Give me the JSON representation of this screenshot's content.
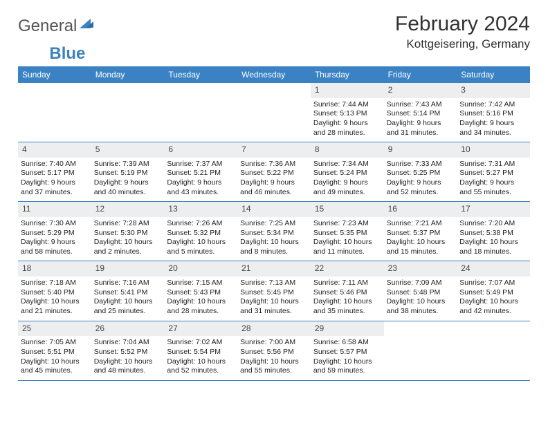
{
  "brand": {
    "part1": "General",
    "part2": "Blue"
  },
  "title": "February 2024",
  "location": "Kottgeisering, Germany",
  "colors": {
    "header_bg": "#3b82c4",
    "header_text": "#ffffff",
    "daynum_bg": "#eceef0",
    "text": "#222222",
    "rule": "#3b82c4"
  },
  "dayNames": [
    "Sunday",
    "Monday",
    "Tuesday",
    "Wednesday",
    "Thursday",
    "Friday",
    "Saturday"
  ],
  "weeks": [
    [
      {
        "empty": true
      },
      {
        "empty": true
      },
      {
        "empty": true
      },
      {
        "empty": true
      },
      {
        "n": "1",
        "sr": "Sunrise: 7:44 AM",
        "ss": "Sunset: 5:13 PM",
        "d1": "Daylight: 9 hours",
        "d2": "and 28 minutes."
      },
      {
        "n": "2",
        "sr": "Sunrise: 7:43 AM",
        "ss": "Sunset: 5:14 PM",
        "d1": "Daylight: 9 hours",
        "d2": "and 31 minutes."
      },
      {
        "n": "3",
        "sr": "Sunrise: 7:42 AM",
        "ss": "Sunset: 5:16 PM",
        "d1": "Daylight: 9 hours",
        "d2": "and 34 minutes."
      }
    ],
    [
      {
        "n": "4",
        "sr": "Sunrise: 7:40 AM",
        "ss": "Sunset: 5:17 PM",
        "d1": "Daylight: 9 hours",
        "d2": "and 37 minutes."
      },
      {
        "n": "5",
        "sr": "Sunrise: 7:39 AM",
        "ss": "Sunset: 5:19 PM",
        "d1": "Daylight: 9 hours",
        "d2": "and 40 minutes."
      },
      {
        "n": "6",
        "sr": "Sunrise: 7:37 AM",
        "ss": "Sunset: 5:21 PM",
        "d1": "Daylight: 9 hours",
        "d2": "and 43 minutes."
      },
      {
        "n": "7",
        "sr": "Sunrise: 7:36 AM",
        "ss": "Sunset: 5:22 PM",
        "d1": "Daylight: 9 hours",
        "d2": "and 46 minutes."
      },
      {
        "n": "8",
        "sr": "Sunrise: 7:34 AM",
        "ss": "Sunset: 5:24 PM",
        "d1": "Daylight: 9 hours",
        "d2": "and 49 minutes."
      },
      {
        "n": "9",
        "sr": "Sunrise: 7:33 AM",
        "ss": "Sunset: 5:25 PM",
        "d1": "Daylight: 9 hours",
        "d2": "and 52 minutes."
      },
      {
        "n": "10",
        "sr": "Sunrise: 7:31 AM",
        "ss": "Sunset: 5:27 PM",
        "d1": "Daylight: 9 hours",
        "d2": "and 55 minutes."
      }
    ],
    [
      {
        "n": "11",
        "sr": "Sunrise: 7:30 AM",
        "ss": "Sunset: 5:29 PM",
        "d1": "Daylight: 9 hours",
        "d2": "and 58 minutes."
      },
      {
        "n": "12",
        "sr": "Sunrise: 7:28 AM",
        "ss": "Sunset: 5:30 PM",
        "d1": "Daylight: 10 hours",
        "d2": "and 2 minutes."
      },
      {
        "n": "13",
        "sr": "Sunrise: 7:26 AM",
        "ss": "Sunset: 5:32 PM",
        "d1": "Daylight: 10 hours",
        "d2": "and 5 minutes."
      },
      {
        "n": "14",
        "sr": "Sunrise: 7:25 AM",
        "ss": "Sunset: 5:34 PM",
        "d1": "Daylight: 10 hours",
        "d2": "and 8 minutes."
      },
      {
        "n": "15",
        "sr": "Sunrise: 7:23 AM",
        "ss": "Sunset: 5:35 PM",
        "d1": "Daylight: 10 hours",
        "d2": "and 11 minutes."
      },
      {
        "n": "16",
        "sr": "Sunrise: 7:21 AM",
        "ss": "Sunset: 5:37 PM",
        "d1": "Daylight: 10 hours",
        "d2": "and 15 minutes."
      },
      {
        "n": "17",
        "sr": "Sunrise: 7:20 AM",
        "ss": "Sunset: 5:38 PM",
        "d1": "Daylight: 10 hours",
        "d2": "and 18 minutes."
      }
    ],
    [
      {
        "n": "18",
        "sr": "Sunrise: 7:18 AM",
        "ss": "Sunset: 5:40 PM",
        "d1": "Daylight: 10 hours",
        "d2": "and 21 minutes."
      },
      {
        "n": "19",
        "sr": "Sunrise: 7:16 AM",
        "ss": "Sunset: 5:41 PM",
        "d1": "Daylight: 10 hours",
        "d2": "and 25 minutes."
      },
      {
        "n": "20",
        "sr": "Sunrise: 7:15 AM",
        "ss": "Sunset: 5:43 PM",
        "d1": "Daylight: 10 hours",
        "d2": "and 28 minutes."
      },
      {
        "n": "21",
        "sr": "Sunrise: 7:13 AM",
        "ss": "Sunset: 5:45 PM",
        "d1": "Daylight: 10 hours",
        "d2": "and 31 minutes."
      },
      {
        "n": "22",
        "sr": "Sunrise: 7:11 AM",
        "ss": "Sunset: 5:46 PM",
        "d1": "Daylight: 10 hours",
        "d2": "and 35 minutes."
      },
      {
        "n": "23",
        "sr": "Sunrise: 7:09 AM",
        "ss": "Sunset: 5:48 PM",
        "d1": "Daylight: 10 hours",
        "d2": "and 38 minutes."
      },
      {
        "n": "24",
        "sr": "Sunrise: 7:07 AM",
        "ss": "Sunset: 5:49 PM",
        "d1": "Daylight: 10 hours",
        "d2": "and 42 minutes."
      }
    ],
    [
      {
        "n": "25",
        "sr": "Sunrise: 7:05 AM",
        "ss": "Sunset: 5:51 PM",
        "d1": "Daylight: 10 hours",
        "d2": "and 45 minutes."
      },
      {
        "n": "26",
        "sr": "Sunrise: 7:04 AM",
        "ss": "Sunset: 5:52 PM",
        "d1": "Daylight: 10 hours",
        "d2": "and 48 minutes."
      },
      {
        "n": "27",
        "sr": "Sunrise: 7:02 AM",
        "ss": "Sunset: 5:54 PM",
        "d1": "Daylight: 10 hours",
        "d2": "and 52 minutes."
      },
      {
        "n": "28",
        "sr": "Sunrise: 7:00 AM",
        "ss": "Sunset: 5:56 PM",
        "d1": "Daylight: 10 hours",
        "d2": "and 55 minutes."
      },
      {
        "n": "29",
        "sr": "Sunrise: 6:58 AM",
        "ss": "Sunset: 5:57 PM",
        "d1": "Daylight: 10 hours",
        "d2": "and 59 minutes."
      },
      {
        "empty": true
      },
      {
        "empty": true
      }
    ]
  ]
}
